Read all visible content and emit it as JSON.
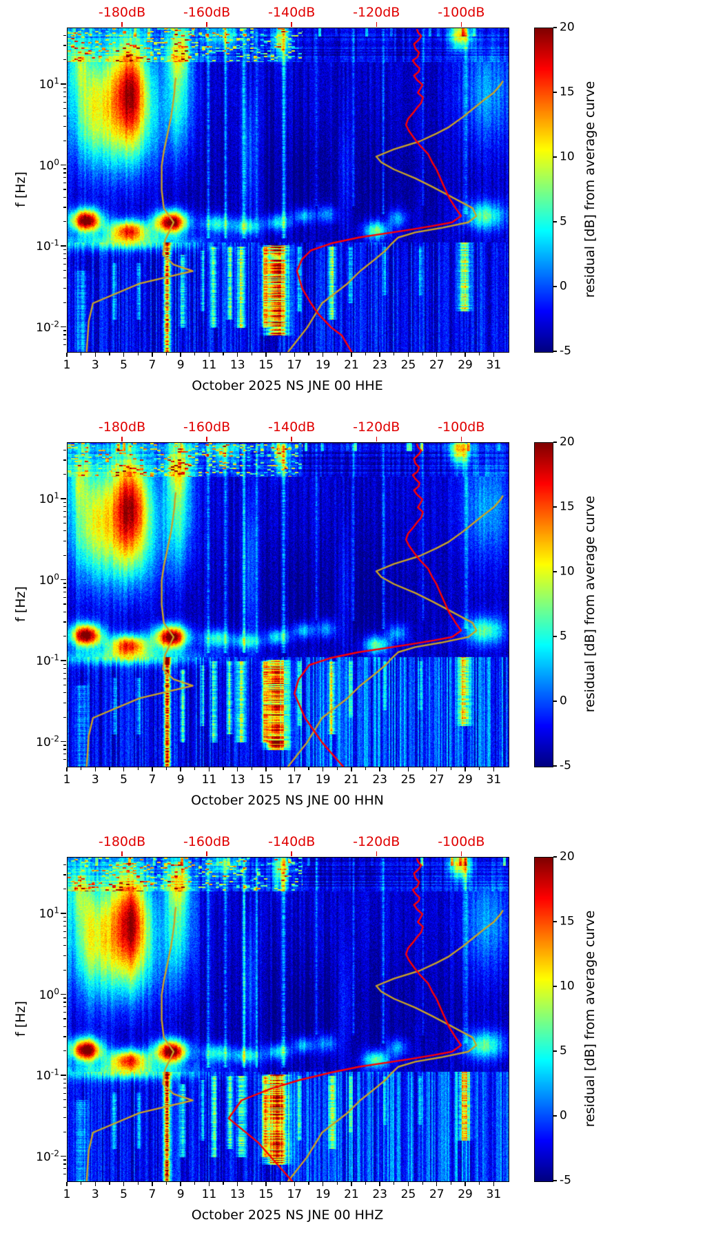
{
  "axes_shared": {
    "ylabel": "f [Hz]",
    "x_label_days": [
      1,
      3,
      5,
      7,
      9,
      11,
      13,
      15,
      17,
      19,
      21,
      23,
      25,
      27,
      29,
      31
    ],
    "x_range_days": [
      1,
      32
    ],
    "f_range_hz": [
      0.005,
      50
    ],
    "y_major_ticks_exp": [
      1,
      0,
      -1,
      -2
    ],
    "top_axis": {
      "color": "#e00000",
      "db_range": [
        -193,
        -89
      ],
      "ticks": [
        {
          "db": -180,
          "label": "-180dB"
        },
        {
          "db": -160,
          "label": "-160dB"
        },
        {
          "db": -140,
          "label": "-140dB"
        },
        {
          "db": -120,
          "label": "-120dB"
        },
        {
          "db": -100,
          "label": "-100dB"
        }
      ]
    },
    "colorbar": {
      "label": "residual [dB] from average curve",
      "range": [
        -5,
        20
      ],
      "ticks": [
        -5,
        0,
        5,
        10,
        15,
        20
      ]
    }
  },
  "chart_data": [
    {
      "type": "heatmap",
      "xlabel": "October 2025 NS JNE 00 HHE",
      "ylabel": "f [Hz]",
      "x_range_days": [
        1,
        32
      ],
      "f_range_hz": [
        0.005,
        50
      ],
      "value_label": "residual [dB] from average curve",
      "value_range": [
        -5,
        20
      ],
      "top_axis_db_ticks": [
        -180,
        -160,
        -140,
        -120,
        -100
      ],
      "curves": {
        "red_lower": [
          [
            0.005,
            -126.0
          ],
          [
            0.008,
            -128.3
          ],
          [
            0.01,
            -130.8
          ],
          [
            0.015,
            -134.0
          ],
          [
            0.02,
            -135.6
          ],
          [
            0.03,
            -137.6
          ],
          [
            0.05,
            -138.9
          ],
          [
            0.07,
            -137.7
          ],
          [
            0.09,
            -135.6
          ],
          [
            0.11,
            -130.8
          ],
          [
            0.13,
            -124.3
          ]
        ]
      }
    },
    {
      "type": "heatmap",
      "xlabel": "October 2025 NS JNE 00 HHN",
      "ylabel": "f [Hz]",
      "x_range_days": [
        1,
        32
      ],
      "f_range_hz": [
        0.005,
        50
      ],
      "value_label": "residual [dB] from average curve",
      "value_range": [
        -5,
        20
      ],
      "top_axis_db_ticks": [
        -180,
        -160,
        -140,
        -120,
        -100
      ],
      "curves": {
        "red_lower": [
          [
            0.005,
            -128.0
          ],
          [
            0.01,
            -133.0
          ],
          [
            0.02,
            -137.0
          ],
          [
            0.04,
            -139.5
          ],
          [
            0.06,
            -138.5
          ],
          [
            0.09,
            -136.0
          ],
          [
            0.11,
            -131.0
          ],
          [
            0.13,
            -124.3
          ]
        ]
      }
    },
    {
      "type": "heatmap",
      "xlabel": "October 2025 NS JNE 00 HHZ",
      "ylabel": "f [Hz]",
      "x_range_days": [
        1,
        32
      ],
      "f_range_hz": [
        0.005,
        50
      ],
      "value_label": "residual [dB] from average curve",
      "value_range": [
        -5,
        20
      ],
      "top_axis_db_ticks": [
        -180,
        -160,
        -140,
        -120,
        -100
      ],
      "curves": {
        "red_lower": [
          [
            0.005,
            -140.0
          ],
          [
            0.015,
            -148.0
          ],
          [
            0.03,
            -155.0
          ],
          [
            0.05,
            -152.0
          ],
          [
            0.07,
            -145.0
          ],
          [
            0.09,
            -138.0
          ],
          [
            0.11,
            -131.0
          ],
          [
            0.13,
            -124.3
          ]
        ]
      }
    }
  ],
  "curves_shared": {
    "red_color": "#ff0000",
    "olive_color": "#c9a227",
    "red_upper": [
      [
        0.16,
        -112.9
      ],
      [
        0.18,
        -107.0
      ],
      [
        0.2,
        -102.3
      ],
      [
        0.24,
        -100.2
      ],
      [
        0.3,
        -101.5
      ],
      [
        0.4,
        -103.0
      ],
      [
        0.55,
        -104.2
      ],
      [
        0.7,
        -105.1
      ],
      [
        0.9,
        -106.0
      ],
      [
        1.1,
        -107.0
      ],
      [
        1.4,
        -108.0
      ],
      [
        1.8,
        -110.0
      ],
      [
        2.2,
        -111.3
      ],
      [
        2.7,
        -112.5
      ],
      [
        3.2,
        -113.2
      ],
      [
        3.8,
        -112.7
      ],
      [
        4.5,
        -111.5
      ],
      [
        5.2,
        -110.6
      ],
      [
        6.0,
        -109.6
      ],
      [
        7.0,
        -109.2
      ],
      [
        8.0,
        -110.4
      ],
      [
        9.0,
        -109.8
      ],
      [
        10.0,
        -109.3
      ],
      [
        11.5,
        -110.6
      ],
      [
        13.0,
        -111.3
      ],
      [
        14.5,
        -110.2
      ],
      [
        16.0,
        -110.0
      ],
      [
        18.0,
        -111.0
      ],
      [
        20.0,
        -111.6
      ],
      [
        22.0,
        -110.5
      ],
      [
        25.0,
        -110.1
      ],
      [
        28.0,
        -111.0
      ],
      [
        32.0,
        -111.3
      ],
      [
        36.0,
        -110.2
      ],
      [
        40.0,
        -109.6
      ],
      [
        44.0,
        -110.3
      ],
      [
        48.0,
        -110.6
      ]
    ],
    "olive_low": [
      [
        0.005,
        -188.5
      ],
      [
        0.012,
        -188.0
      ],
      [
        0.02,
        -187.0
      ],
      [
        0.035,
        -176.0
      ],
      [
        0.05,
        -163.5
      ],
      [
        0.06,
        -168.0
      ],
      [
        0.08,
        -170.5
      ],
      [
        0.12,
        -170.0
      ],
      [
        0.2,
        -168.0
      ],
      [
        0.3,
        -170.3
      ],
      [
        0.5,
        -170.8
      ],
      [
        1.0,
        -170.8
      ],
      [
        1.5,
        -170.3
      ],
      [
        2.5,
        -169.4
      ],
      [
        4.0,
        -168.6
      ],
      [
        6.0,
        -168.1
      ],
      [
        8.0,
        -167.8
      ],
      [
        10.0,
        -167.7
      ],
      [
        12.0,
        -167.5
      ]
    ],
    "olive_high": [
      [
        0.005,
        -141.0
      ],
      [
        0.01,
        -136.5
      ],
      [
        0.02,
        -133.0
      ],
      [
        0.035,
        -127.0
      ],
      [
        0.05,
        -124.0
      ],
      [
        0.07,
        -120.5
      ],
      [
        0.09,
        -118.0
      ],
      [
        0.11,
        -116.5
      ],
      [
        0.13,
        -115.0
      ],
      [
        0.15,
        -111.0
      ],
      [
        0.17,
        -105.0
      ],
      [
        0.2,
        -98.5
      ],
      [
        0.24,
        -96.6
      ],
      [
        0.3,
        -97.5
      ],
      [
        0.4,
        -102.0
      ],
      [
        0.55,
        -107.0
      ],
      [
        0.7,
        -111.0
      ],
      [
        0.9,
        -116.0
      ],
      [
        1.1,
        -119.0
      ],
      [
        1.3,
        -120.2
      ],
      [
        1.6,
        -116.0
      ],
      [
        2.0,
        -110.0
      ],
      [
        2.5,
        -106.0
      ],
      [
        3.0,
        -103.1
      ],
      [
        4.0,
        -99.8
      ],
      [
        5.0,
        -97.5
      ],
      [
        6.5,
        -94.8
      ],
      [
        8.0,
        -92.5
      ],
      [
        10.0,
        -90.9
      ],
      [
        11.0,
        -90.4
      ]
    ]
  },
  "heatmap_render": {
    "background": {
      "base": -3.0,
      "speckle": 3.2,
      "dark_center_day": 19,
      "dark_sd_day": 6.5,
      "dark_center_lf": -0.2,
      "dark_sd_lf": 0.55,
      "dark_amp": 1.5,
      "low_band_lift": 0.8,
      "low_band_stripe": 4.5,
      "mid_stripe": 2.2,
      "top_lf": 1.28,
      "dash_day_max": 17.5
    },
    "panel_params": [
      {
        "seed": 11,
        "bottom_wash": 0
      },
      {
        "seed": 29,
        "bottom_wash": 2.6
      },
      {
        "seed": 47,
        "bottom_wash": 2.6
      }
    ],
    "blobs": [
      {
        "d": 4.0,
        "lf": 0.85,
        "sd": 2.0,
        "slf": 0.5,
        "a": 10
      },
      {
        "d": 5.5,
        "lf": 0.95,
        "sd": 0.85,
        "slf": 0.42,
        "a": 14
      },
      {
        "d": 5.3,
        "lf": 0.3,
        "sd": 1.5,
        "slf": 0.35,
        "a": 5
      },
      {
        "d": 2.5,
        "lf": 0.6,
        "sd": 0.9,
        "slf": 0.5,
        "a": 5
      },
      {
        "d": 8.8,
        "lf": 0.9,
        "sd": 0.75,
        "slf": 0.55,
        "a": 8.5
      },
      {
        "d": 8.8,
        "lf": 1.4,
        "sd": 0.55,
        "slf": 0.22,
        "a": 7.5
      },
      {
        "d": 2.3,
        "lf": -0.68,
        "sd": 0.75,
        "slf": 0.1,
        "a": 25
      },
      {
        "d": 5.3,
        "lf": -0.8,
        "sd": 1.0,
        "slf": 0.09,
        "a": 19
      },
      {
        "d": 8.3,
        "lf": -0.7,
        "sd": 0.8,
        "slf": 0.1,
        "a": 25
      },
      {
        "d": 5.0,
        "lf": -0.95,
        "sd": 4.0,
        "slf": 0.07,
        "a": 8
      },
      {
        "d": 11.5,
        "lf": -0.72,
        "sd": 0.7,
        "slf": 0.08,
        "a": 9
      },
      {
        "d": 13.6,
        "lf": -0.75,
        "sd": 0.7,
        "slf": 0.07,
        "a": 8
      },
      {
        "d": 15.8,
        "lf": -0.7,
        "sd": 0.6,
        "slf": 0.07,
        "a": 8
      },
      {
        "d": 17.6,
        "lf": -0.62,
        "sd": 0.5,
        "slf": 0.07,
        "a": 7
      },
      {
        "d": 19.2,
        "lf": -0.6,
        "sd": 0.5,
        "slf": 0.08,
        "a": 6
      },
      {
        "d": 22.7,
        "lf": -0.8,
        "sd": 0.6,
        "slf": 0.08,
        "a": 11
      },
      {
        "d": 24.2,
        "lf": -0.65,
        "sd": 0.5,
        "slf": 0.08,
        "a": 6
      },
      {
        "d": 30.3,
        "lf": -0.62,
        "sd": 1.0,
        "slf": 0.12,
        "a": 10
      },
      {
        "d": 30.5,
        "lf": 0.9,
        "sd": 1.3,
        "slf": 0.45,
        "a": 5
      },
      {
        "d": 28.6,
        "lf": 1.62,
        "sd": 0.5,
        "slf": 0.13,
        "a": 14
      },
      {
        "d": 16.0,
        "lf": 1.55,
        "sd": 0.4,
        "slf": 0.15,
        "a": 9
      },
      {
        "d": 12.0,
        "lf": 1.6,
        "sd": 0.8,
        "slf": 0.12,
        "a": 6
      },
      {
        "d": 1.8,
        "lf": 1.3,
        "sd": 0.5,
        "slf": 0.25,
        "a": 6
      },
      {
        "d": 13.8,
        "lf": 0.1,
        "sd": 0.4,
        "slf": 0.6,
        "a": 4
      },
      {
        "d": 20.5,
        "lf": -0.1,
        "sd": 0.4,
        "slf": 0.5,
        "a": 3
      }
    ],
    "stripes": [
      {
        "d": 8.0,
        "w": 0.16,
        "l1": -2.35,
        "l2": -0.95,
        "a": 17
      },
      {
        "d": 15.7,
        "w": 0.5,
        "l1": -2.1,
        "l2": -0.98,
        "a": 18
      },
      {
        "d": 14.9,
        "w": 0.16,
        "l1": -2.0,
        "l2": -1.0,
        "a": 11
      },
      {
        "d": 13.2,
        "w": 0.2,
        "l1": -2.0,
        "l2": -1.0,
        "a": 10
      },
      {
        "d": 12.4,
        "w": 0.13,
        "l1": -1.9,
        "l2": -1.0,
        "a": 8
      },
      {
        "d": 11.3,
        "w": 0.15,
        "l1": -2.0,
        "l2": -1.0,
        "a": 8
      },
      {
        "d": 10.5,
        "w": 0.1,
        "l1": -1.8,
        "l2": -1.05,
        "a": 6
      },
      {
        "d": 9.1,
        "w": 0.12,
        "l1": -2.0,
        "l2": -1.1,
        "a": 8
      },
      {
        "d": 19.6,
        "w": 0.16,
        "l1": -1.9,
        "l2": -1.0,
        "a": 9
      },
      {
        "d": 17.3,
        "w": 0.1,
        "l1": -1.8,
        "l2": -1.0,
        "a": 6
      },
      {
        "d": 20.9,
        "w": 0.1,
        "l1": -1.7,
        "l2": -1.0,
        "a": 5
      },
      {
        "d": 23.3,
        "w": 0.1,
        "l1": -1.6,
        "l2": -1.0,
        "a": 4
      },
      {
        "d": 25.8,
        "w": 0.1,
        "l1": -1.6,
        "l2": -1.0,
        "a": 4
      },
      {
        "d": 28.9,
        "w": 0.28,
        "l1": -1.8,
        "l2": -0.95,
        "a": 11
      },
      {
        "d": 6.0,
        "w": 0.1,
        "l1": -1.9,
        "l2": -1.2,
        "a": 5
      },
      {
        "d": 4.3,
        "w": 0.1,
        "l1": -1.9,
        "l2": -1.2,
        "a": 5
      },
      {
        "d": 2.0,
        "w": 0.3,
        "l1": -2.35,
        "l2": -1.3,
        "a": 4
      },
      {
        "d": 10.9,
        "w": 0.08,
        "l1": -0.9,
        "l2": 1.69,
        "a": 5
      },
      {
        "d": 12.1,
        "w": 0.08,
        "l1": -0.9,
        "l2": 1.69,
        "a": 5
      },
      {
        "d": 13.4,
        "w": 0.08,
        "l1": -0.9,
        "l2": 1.69,
        "a": 6
      },
      {
        "d": 14.3,
        "w": 0.06,
        "l1": -0.9,
        "l2": 1.69,
        "a": 4
      },
      {
        "d": 16.2,
        "w": 0.1,
        "l1": -0.9,
        "l2": 1.69,
        "a": 6
      },
      {
        "d": 18.5,
        "w": 0.06,
        "l1": -0.5,
        "l2": 1.69,
        "a": 4
      },
      {
        "d": 21.1,
        "w": 0.06,
        "l1": -0.5,
        "l2": 1.69,
        "a": 4
      },
      {
        "d": 23.2,
        "w": 0.07,
        "l1": -0.6,
        "l2": 1.69,
        "a": 4.5
      },
      {
        "d": 26.0,
        "w": 0.06,
        "l1": -0.5,
        "l2": 1.69,
        "a": 3.5
      },
      {
        "d": 29.0,
        "w": 0.09,
        "l1": -0.6,
        "l2": 1.69,
        "a": 4
      }
    ]
  }
}
